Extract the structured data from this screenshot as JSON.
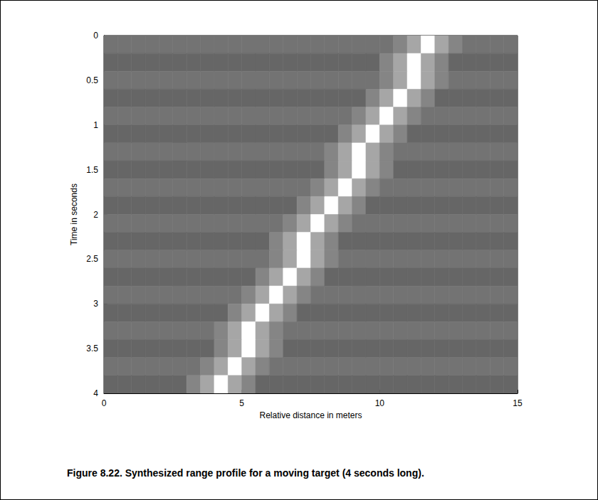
{
  "chart_data": {
    "type": "heatmap",
    "caption": "Figure 8.22. Synthesized range profile for a moving target (4 seconds long).",
    "x_label": "Relative distance in meters",
    "y_label": "Time in seconds",
    "xlim": [
      0,
      15
    ],
    "xticks": [
      0,
      5,
      10,
      15
    ],
    "ylim": [
      4,
      0
    ],
    "yticks": [
      0,
      0.5,
      1,
      1.5,
      2,
      2.5,
      3,
      3.5,
      4
    ],
    "grid": false,
    "zlim": [
      0,
      1
    ],
    "x_bins": [
      0,
      0.5,
      1,
      1.5,
      2,
      2.5,
      3,
      3.5,
      4,
      4.5,
      5,
      5.5,
      6,
      6.5,
      7,
      7.5,
      8,
      8.5,
      9,
      9.5,
      10,
      10.5,
      11,
      11.5,
      12,
      12.5,
      13,
      13.5,
      14,
      14.5,
      15
    ],
    "y_bins": [
      0,
      0.2,
      0.4,
      0.6,
      0.8,
      1,
      1.2,
      1.4,
      1.6,
      1.8,
      2,
      2.2,
      2.4,
      2.6,
      2.8,
      3,
      3.2,
      3.4,
      3.6,
      3.8,
      4
    ],
    "z": [
      [
        0.45,
        0.45,
        0.45,
        0.45,
        0.45,
        0.45,
        0.45,
        0.45,
        0.45,
        0.45,
        0.45,
        0.45,
        0.45,
        0.45,
        0.45,
        0.45,
        0.45,
        0.45,
        0.45,
        0.45,
        0.45,
        0.52,
        0.65,
        1,
        0.65,
        0.52,
        0.45,
        0.45,
        0.45,
        0.45
      ],
      [
        0.4,
        0.4,
        0.4,
        0.4,
        0.4,
        0.4,
        0.4,
        0.4,
        0.4,
        0.4,
        0.4,
        0.4,
        0.4,
        0.4,
        0.4,
        0.4,
        0.4,
        0.4,
        0.4,
        0.4,
        0.52,
        0.65,
        1,
        0.65,
        0.52,
        0.4,
        0.4,
        0.4,
        0.4,
        0.4
      ],
      [
        0.45,
        0.45,
        0.45,
        0.45,
        0.45,
        0.45,
        0.45,
        0.45,
        0.45,
        0.45,
        0.45,
        0.45,
        0.45,
        0.45,
        0.45,
        0.45,
        0.45,
        0.45,
        0.45,
        0.45,
        0.52,
        0.65,
        1,
        0.65,
        0.52,
        0.45,
        0.45,
        0.45,
        0.45,
        0.45
      ],
      [
        0.4,
        0.4,
        0.4,
        0.4,
        0.4,
        0.4,
        0.4,
        0.4,
        0.4,
        0.4,
        0.4,
        0.4,
        0.4,
        0.4,
        0.4,
        0.4,
        0.4,
        0.4,
        0.4,
        0.52,
        0.65,
        1,
        0.65,
        0.52,
        0.4,
        0.4,
        0.4,
        0.4,
        0.4,
        0.4
      ],
      [
        0.45,
        0.45,
        0.45,
        0.45,
        0.45,
        0.45,
        0.45,
        0.45,
        0.45,
        0.45,
        0.45,
        0.45,
        0.45,
        0.45,
        0.45,
        0.45,
        0.45,
        0.45,
        0.52,
        0.65,
        1,
        0.65,
        0.52,
        0.45,
        0.45,
        0.45,
        0.45,
        0.45,
        0.45,
        0.45
      ],
      [
        0.4,
        0.4,
        0.4,
        0.4,
        0.4,
        0.4,
        0.4,
        0.4,
        0.4,
        0.4,
        0.4,
        0.4,
        0.4,
        0.4,
        0.4,
        0.4,
        0.4,
        0.52,
        0.65,
        1,
        0.65,
        0.52,
        0.4,
        0.4,
        0.4,
        0.4,
        0.4,
        0.4,
        0.4,
        0.4
      ],
      [
        0.45,
        0.45,
        0.45,
        0.45,
        0.45,
        0.45,
        0.45,
        0.45,
        0.45,
        0.45,
        0.45,
        0.45,
        0.45,
        0.45,
        0.45,
        0.45,
        0.52,
        0.65,
        1,
        0.65,
        0.52,
        0.45,
        0.45,
        0.45,
        0.45,
        0.45,
        0.45,
        0.45,
        0.45,
        0.45
      ],
      [
        0.4,
        0.4,
        0.4,
        0.4,
        0.4,
        0.4,
        0.4,
        0.4,
        0.4,
        0.4,
        0.4,
        0.4,
        0.4,
        0.4,
        0.4,
        0.4,
        0.52,
        0.65,
        1,
        0.65,
        0.52,
        0.4,
        0.4,
        0.4,
        0.4,
        0.4,
        0.4,
        0.4,
        0.4,
        0.4
      ],
      [
        0.45,
        0.45,
        0.45,
        0.45,
        0.45,
        0.45,
        0.45,
        0.45,
        0.45,
        0.45,
        0.45,
        0.45,
        0.45,
        0.45,
        0.45,
        0.52,
        0.65,
        1,
        0.65,
        0.52,
        0.45,
        0.45,
        0.45,
        0.45,
        0.45,
        0.45,
        0.45,
        0.45,
        0.45,
        0.45
      ],
      [
        0.4,
        0.4,
        0.4,
        0.4,
        0.4,
        0.4,
        0.4,
        0.4,
        0.4,
        0.4,
        0.4,
        0.4,
        0.4,
        0.4,
        0.52,
        0.65,
        1,
        0.65,
        0.52,
        0.4,
        0.4,
        0.4,
        0.4,
        0.4,
        0.4,
        0.4,
        0.4,
        0.4,
        0.4,
        0.4
      ],
      [
        0.45,
        0.45,
        0.45,
        0.45,
        0.45,
        0.45,
        0.45,
        0.45,
        0.45,
        0.45,
        0.45,
        0.45,
        0.45,
        0.52,
        0.65,
        1,
        0.65,
        0.52,
        0.45,
        0.45,
        0.45,
        0.45,
        0.45,
        0.45,
        0.45,
        0.45,
        0.45,
        0.45,
        0.45,
        0.45
      ],
      [
        0.4,
        0.4,
        0.4,
        0.4,
        0.4,
        0.4,
        0.4,
        0.4,
        0.4,
        0.4,
        0.4,
        0.4,
        0.52,
        0.65,
        1,
        0.65,
        0.52,
        0.4,
        0.4,
        0.4,
        0.4,
        0.4,
        0.4,
        0.4,
        0.4,
        0.4,
        0.4,
        0.4,
        0.4,
        0.4
      ],
      [
        0.45,
        0.45,
        0.45,
        0.45,
        0.45,
        0.45,
        0.45,
        0.45,
        0.45,
        0.45,
        0.45,
        0.45,
        0.52,
        0.65,
        1,
        0.65,
        0.52,
        0.45,
        0.45,
        0.45,
        0.45,
        0.45,
        0.45,
        0.45,
        0.45,
        0.45,
        0.45,
        0.45,
        0.45,
        0.45
      ],
      [
        0.4,
        0.4,
        0.4,
        0.4,
        0.4,
        0.4,
        0.4,
        0.4,
        0.4,
        0.4,
        0.4,
        0.52,
        0.65,
        1,
        0.65,
        0.52,
        0.4,
        0.4,
        0.4,
        0.4,
        0.4,
        0.4,
        0.4,
        0.4,
        0.4,
        0.4,
        0.4,
        0.4,
        0.4,
        0.4
      ],
      [
        0.45,
        0.45,
        0.45,
        0.45,
        0.45,
        0.45,
        0.45,
        0.45,
        0.45,
        0.45,
        0.52,
        0.65,
        1,
        0.65,
        0.52,
        0.45,
        0.45,
        0.45,
        0.45,
        0.45,
        0.45,
        0.45,
        0.45,
        0.45,
        0.45,
        0.45,
        0.45,
        0.45,
        0.45,
        0.45
      ],
      [
        0.4,
        0.4,
        0.4,
        0.4,
        0.4,
        0.4,
        0.4,
        0.4,
        0.4,
        0.52,
        0.65,
        1,
        0.65,
        0.52,
        0.4,
        0.4,
        0.4,
        0.4,
        0.4,
        0.4,
        0.4,
        0.4,
        0.4,
        0.4,
        0.4,
        0.4,
        0.4,
        0.4,
        0.4,
        0.4
      ],
      [
        0.45,
        0.45,
        0.45,
        0.45,
        0.45,
        0.45,
        0.45,
        0.45,
        0.52,
        0.65,
        1,
        0.65,
        0.52,
        0.45,
        0.45,
        0.45,
        0.45,
        0.45,
        0.45,
        0.45,
        0.45,
        0.45,
        0.45,
        0.45,
        0.45,
        0.45,
        0.45,
        0.45,
        0.45,
        0.45
      ],
      [
        0.4,
        0.4,
        0.4,
        0.4,
        0.4,
        0.4,
        0.4,
        0.4,
        0.52,
        0.65,
        1,
        0.65,
        0.52,
        0.4,
        0.4,
        0.4,
        0.4,
        0.4,
        0.4,
        0.4,
        0.4,
        0.4,
        0.4,
        0.4,
        0.4,
        0.4,
        0.4,
        0.4,
        0.4,
        0.4
      ],
      [
        0.45,
        0.45,
        0.45,
        0.45,
        0.45,
        0.45,
        0.45,
        0.52,
        0.65,
        1,
        0.65,
        0.52,
        0.45,
        0.45,
        0.45,
        0.45,
        0.45,
        0.45,
        0.45,
        0.45,
        0.45,
        0.45,
        0.45,
        0.45,
        0.45,
        0.45,
        0.45,
        0.45,
        0.45,
        0.45
      ],
      [
        0.4,
        0.4,
        0.4,
        0.4,
        0.4,
        0.4,
        0.52,
        0.65,
        1,
        0.65,
        0.52,
        0.4,
        0.4,
        0.4,
        0.4,
        0.4,
        0.4,
        0.4,
        0.4,
        0.4,
        0.4,
        0.4,
        0.4,
        0.4,
        0.4,
        0.4,
        0.4,
        0.4,
        0.4,
        0.4
      ]
    ]
  }
}
